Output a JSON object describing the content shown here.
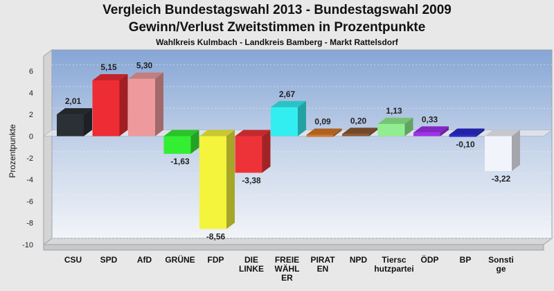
{
  "chart_data": {
    "type": "bar",
    "title": "Vergleich Bundestagswahl 2013 - Bundestagswahl 2009",
    "subtitle": "Gewinn/Verlust Zweitstimmen in Prozentpunkte",
    "caption": "Wahlkreis Kulmbach - Landkreis Bamberg - Markt Rattelsdorf",
    "ylabel": "Prozentpunkte",
    "xlabel": "",
    "ylim": [
      -10,
      7
    ],
    "yticks": [
      6,
      4,
      2,
      0,
      -2,
      -4,
      -6,
      -8,
      -10
    ],
    "grid": true,
    "categories": [
      [
        "CSU"
      ],
      [
        "SPD"
      ],
      [
        "AfD"
      ],
      [
        "GRÜNE"
      ],
      [
        "FDP"
      ],
      [
        "DIE",
        "LINKE"
      ],
      [
        "FREIE",
        "WÄHL",
        "ER"
      ],
      [
        "PIRAT",
        "EN"
      ],
      [
        "NPD"
      ],
      [
        "Tiersc",
        "hutzpartei"
      ],
      [
        "ÖDP"
      ],
      [
        "BP"
      ],
      [
        "Sonsti",
        "ge"
      ]
    ],
    "values": [
      2.01,
      5.15,
      5.3,
      -1.63,
      -8.56,
      -3.38,
      2.67,
      0.09,
      0.2,
      1.13,
      0.33,
      -0.1,
      -3.22
    ],
    "value_labels": [
      "2,01",
      "5,15",
      "5,30",
      "-1,63",
      "-8,56",
      "-3,38",
      "2,67",
      "0,09",
      "0,20",
      "1,13",
      "0,33",
      "-0,10",
      "-3,22"
    ],
    "colors": [
      "#2b2f36",
      "#ee2c34",
      "#ee9a9c",
      "#33ee33",
      "#f4f43c",
      "#ee3338",
      "#33eef0",
      "#d4782a",
      "#8c5a32",
      "#90ee90",
      "#a030ee",
      "#2a2acc",
      "#f2f4fb"
    ]
  }
}
